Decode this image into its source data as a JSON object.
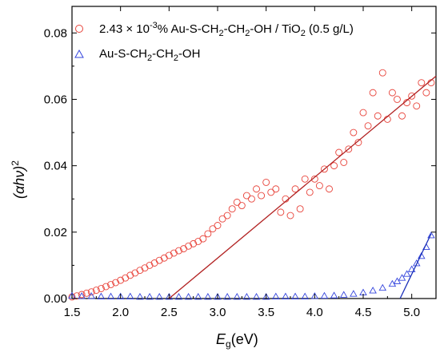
{
  "chart_data": {
    "type": "scatter",
    "xlabel_main": "E",
    "xlabel_sub": "g",
    "xlabel_unit": "(eV)",
    "ylabel_main": "(αhν)",
    "ylabel_sup": "2",
    "xlim": [
      1.5,
      5.25
    ],
    "ylim": [
      0,
      0.088
    ],
    "x_ticks": [
      "1.5",
      "2.0",
      "2.5",
      "3.0",
      "3.5",
      "4.0",
      "4.5",
      "5.0"
    ],
    "x_tick_values": [
      1.5,
      2.0,
      2.5,
      3.0,
      3.5,
      4.0,
      4.5,
      5.0
    ],
    "y_ticks": [
      "0.00",
      "0.02",
      "0.04",
      "0.06",
      "0.08"
    ],
    "y_tick_values": [
      0.0,
      0.02,
      0.04,
      0.06,
      0.08
    ],
    "legend_position": "top-left",
    "colors": {
      "series1": "#e8433a",
      "series2": "#3344dd",
      "fit1": "#b22222",
      "fit2": "#1a2fb8"
    },
    "series": [
      {
        "name": "2.43 × 10⁻³% Au-S-CH₂-CH₂-OH / TiO₂ (0.5 g/L)",
        "legend_parts": [
          "2.43 × 10",
          "-3",
          "% Au-S-CH",
          "2",
          "-CH",
          "2",
          "-OH / TiO",
          "2",
          " (0.5 g/L)"
        ],
        "marker": "circle",
        "x": [
          1.5,
          1.55,
          1.6,
          1.65,
          1.7,
          1.75,
          1.8,
          1.85,
          1.9,
          1.95,
          2.0,
          2.05,
          2.1,
          2.15,
          2.2,
          2.25,
          2.3,
          2.35,
          2.4,
          2.45,
          2.5,
          2.55,
          2.6,
          2.65,
          2.7,
          2.75,
          2.8,
          2.85,
          2.9,
          2.95,
          3.0,
          3.05,
          3.1,
          3.15,
          3.2,
          3.25,
          3.3,
          3.35,
          3.4,
          3.45,
          3.5,
          3.55,
          3.6,
          3.65,
          3.7,
          3.75,
          3.8,
          3.85,
          3.9,
          3.95,
          4.0,
          4.05,
          4.1,
          4.15,
          4.2,
          4.25,
          4.3,
          4.35,
          4.4,
          4.45,
          4.5,
          4.55,
          4.6,
          4.65,
          4.7,
          4.75,
          4.8,
          4.85,
          4.9,
          4.95,
          5.0,
          5.05,
          5.1,
          5.15,
          5.2
        ],
        "y": [
          0.0005,
          0.0008,
          0.0012,
          0.0016,
          0.002,
          0.0025,
          0.003,
          0.0036,
          0.0042,
          0.0048,
          0.0055,
          0.0062,
          0.007,
          0.0077,
          0.0085,
          0.0092,
          0.01,
          0.0107,
          0.0115,
          0.0122,
          0.013,
          0.0137,
          0.0144,
          0.015,
          0.0158,
          0.0165,
          0.0172,
          0.018,
          0.0195,
          0.021,
          0.022,
          0.024,
          0.025,
          0.027,
          0.029,
          0.028,
          0.031,
          0.03,
          0.033,
          0.031,
          0.035,
          0.032,
          0.033,
          0.026,
          0.03,
          0.025,
          0.033,
          0.027,
          0.036,
          0.032,
          0.036,
          0.034,
          0.039,
          0.033,
          0.04,
          0.044,
          0.041,
          0.045,
          0.05,
          0.047,
          0.056,
          0.052,
          0.062,
          0.055,
          0.068,
          0.054,
          0.062,
          0.06,
          0.055,
          0.059,
          0.061,
          0.058,
          0.065,
          0.062,
          0.065
        ]
      },
      {
        "name": "Au-S-CH₂-CH₂-OH",
        "legend_parts": [
          "Au-S-CH",
          "2",
          "-CH",
          "2",
          "-OH"
        ],
        "marker": "triangle",
        "x": [
          1.5,
          1.6,
          1.7,
          1.8,
          1.9,
          2.0,
          2.1,
          2.2,
          2.3,
          2.4,
          2.5,
          2.6,
          2.7,
          2.8,
          2.9,
          3.0,
          3.1,
          3.2,
          3.3,
          3.4,
          3.5,
          3.6,
          3.7,
          3.8,
          3.9,
          4.0,
          4.1,
          4.2,
          4.3,
          4.4,
          4.5,
          4.6,
          4.7,
          4.8,
          4.85,
          4.9,
          4.95,
          5.0,
          5.05,
          5.1,
          5.15,
          5.2
        ],
        "y": [
          0.0008,
          0.0007,
          0.0007,
          0.0006,
          0.0006,
          0.0006,
          0.0006,
          0.0005,
          0.0005,
          0.0005,
          0.0005,
          0.0005,
          0.0005,
          0.0005,
          0.0005,
          0.0005,
          0.0005,
          0.0005,
          0.0005,
          0.0005,
          0.0005,
          0.0006,
          0.0006,
          0.0006,
          0.0006,
          0.0007,
          0.0008,
          0.0009,
          0.0011,
          0.0014,
          0.0018,
          0.0024,
          0.0032,
          0.0044,
          0.0052,
          0.0062,
          0.0074,
          0.0088,
          0.0106,
          0.0128,
          0.0155,
          0.019
        ]
      }
    ],
    "fit_lines": [
      {
        "x": [
          2.5,
          5.25
        ],
        "y": [
          0.0,
          0.067
        ]
      },
      {
        "x": [
          4.88,
          5.2
        ],
        "y": [
          0.0,
          0.0195
        ]
      }
    ]
  }
}
